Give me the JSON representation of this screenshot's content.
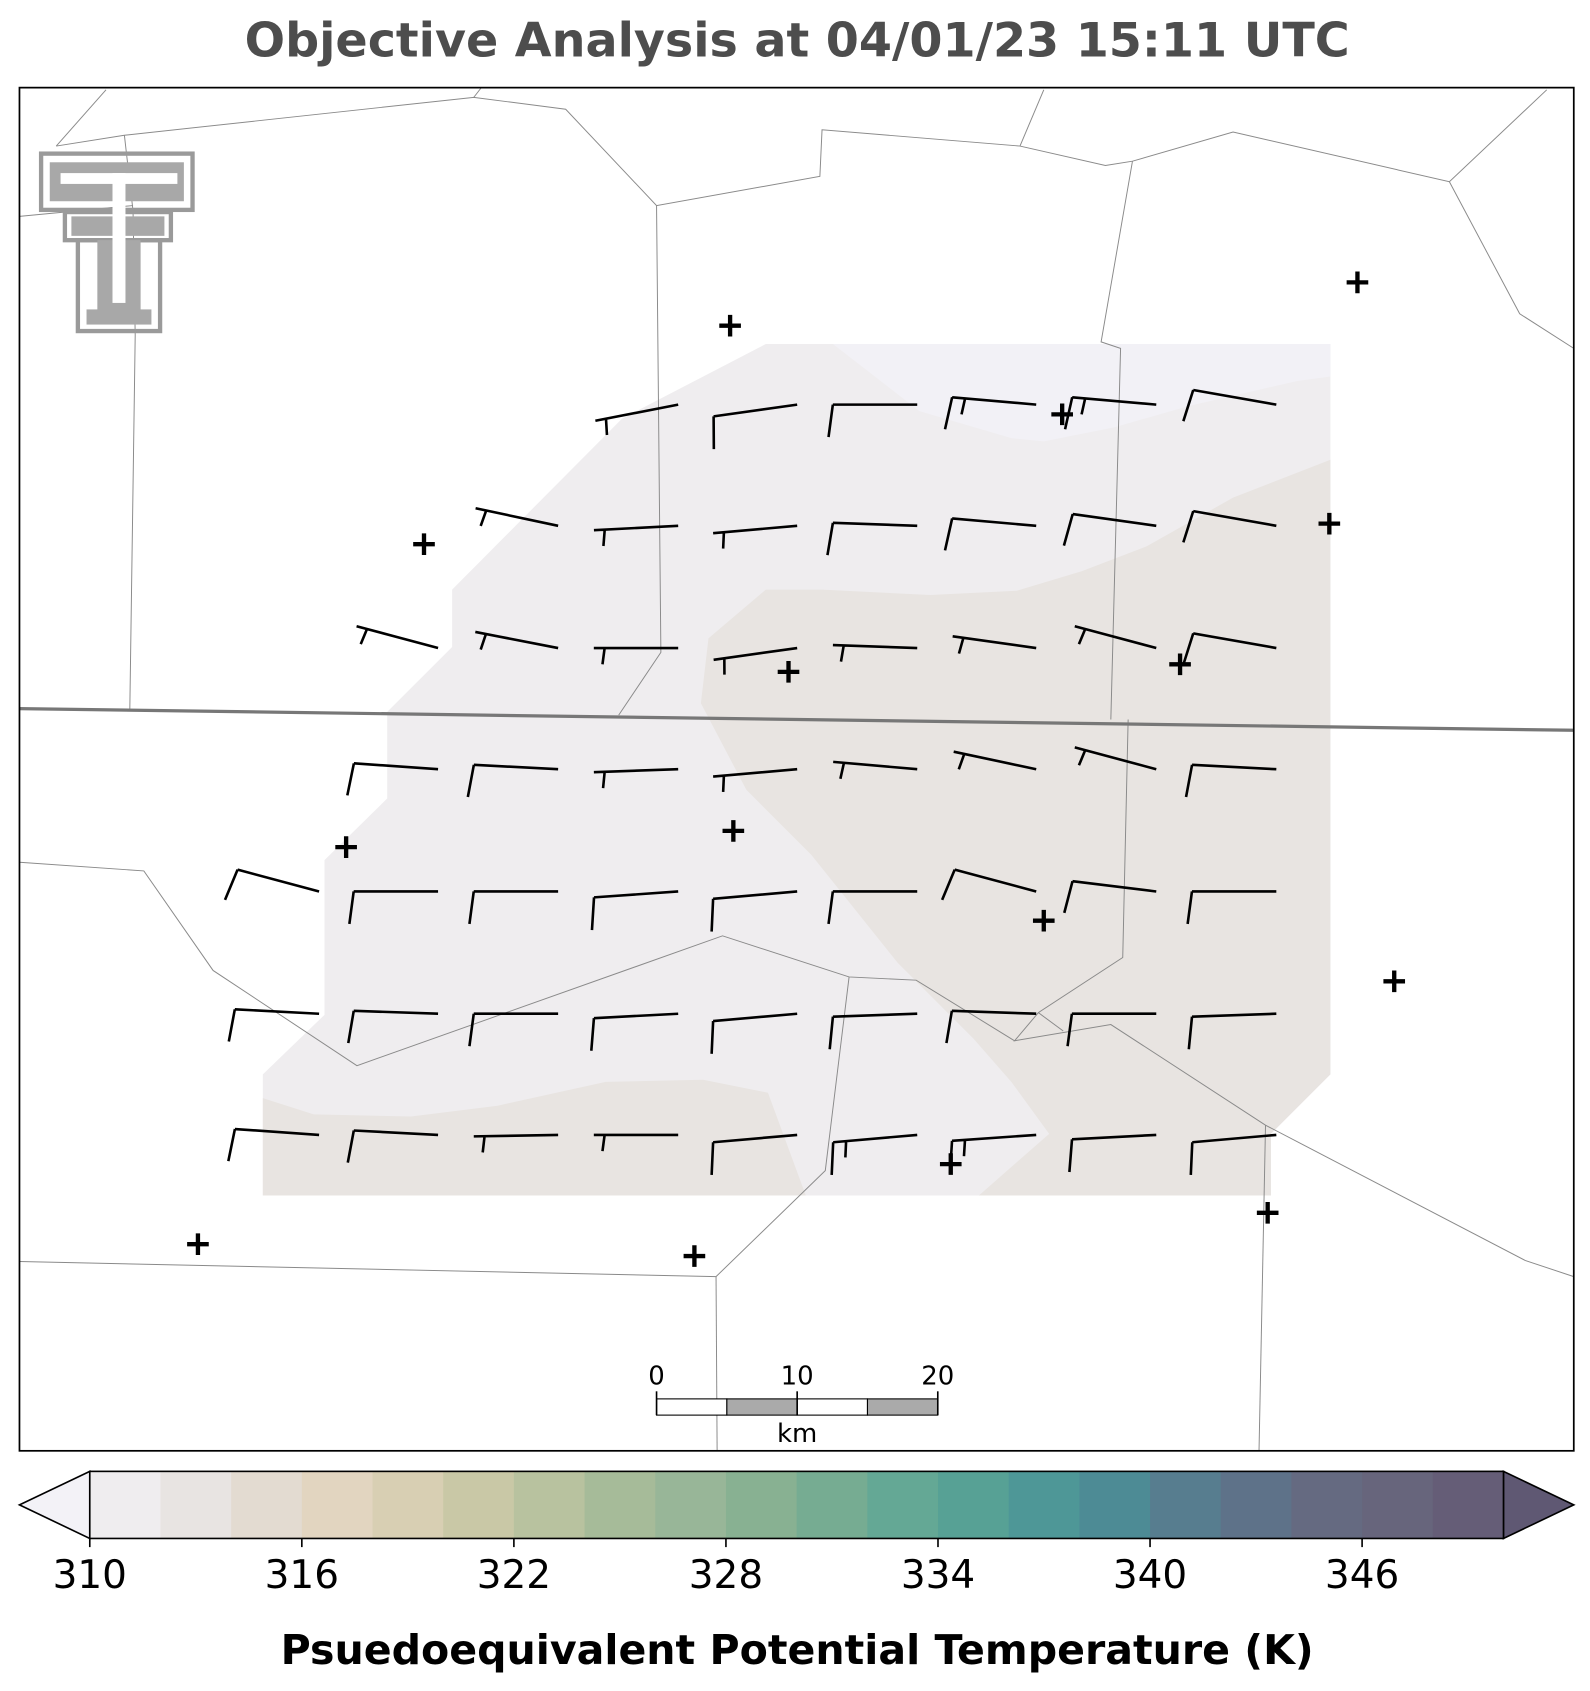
{
  "title": "Objective Analysis at 04/01/23 15:11 UTC",
  "colorbar": {
    "levels": [
      310,
      312,
      314,
      316,
      318,
      320,
      322,
      324,
      326,
      328,
      330,
      332,
      334,
      336,
      338,
      340,
      342,
      344,
      346,
      348,
      350
    ],
    "colors": [
      "#efedef",
      "#e8e4e2",
      "#e3dbd1",
      "#e2d5c0",
      "#d8cfb3",
      "#c9c8a6",
      "#b8c29f",
      "#a6bb99",
      "#98b698",
      "#88b192",
      "#76ac92",
      "#64a895",
      "#57a195",
      "#4e9797",
      "#4d8b95",
      "#577d8f",
      "#5e7289",
      "#656a81",
      "#67657c",
      "#655d77"
    ],
    "under_color": "#f3f2f7",
    "over_color": "#5f5873",
    "ticks": [
      310,
      316,
      322,
      328,
      334,
      340,
      346
    ],
    "label": "Psuedoequivalent Potential Temperature (K)"
  },
  "scale_bar": {
    "ticks": [
      0,
      10,
      20
    ],
    "unit": "km"
  },
  "wind_barbs": {
    "speed": [
      [
        null,
        null,
        null,
        5,
        10,
        10,
        15,
        15,
        10
      ],
      [
        null,
        null,
        5,
        5,
        5,
        10,
        10,
        10,
        10
      ],
      [
        null,
        5,
        5,
        5,
        5,
        5,
        5,
        5,
        10
      ],
      [
        null,
        10,
        10,
        5,
        5,
        5,
        5,
        5,
        10
      ],
      [
        10,
        10,
        10,
        10,
        10,
        10,
        10,
        10,
        10
      ],
      [
        10,
        10,
        10,
        10,
        10,
        10,
        10,
        10,
        10
      ],
      [
        10,
        10,
        5,
        5,
        10,
        15,
        15,
        10,
        10
      ]
    ],
    "direction": [
      [
        null,
        null,
        null,
        259,
        262,
        270,
        275,
        275,
        280
      ],
      [
        null,
        null,
        282,
        267,
        265,
        272,
        275,
        278,
        280
      ],
      [
        null,
        285,
        281,
        270,
        262,
        272,
        278,
        285,
        280
      ],
      [
        null,
        274,
        273,
        268,
        265,
        275,
        282,
        285,
        273
      ],
      [
        285,
        270,
        270,
        266,
        265,
        270,
        285,
        277,
        270
      ],
      [
        273,
        272,
        270,
        267,
        265,
        268,
        272,
        270,
        268
      ],
      [
        274,
        273,
        269,
        270,
        265,
        265,
        266,
        267,
        265
      ]
    ]
  }
}
